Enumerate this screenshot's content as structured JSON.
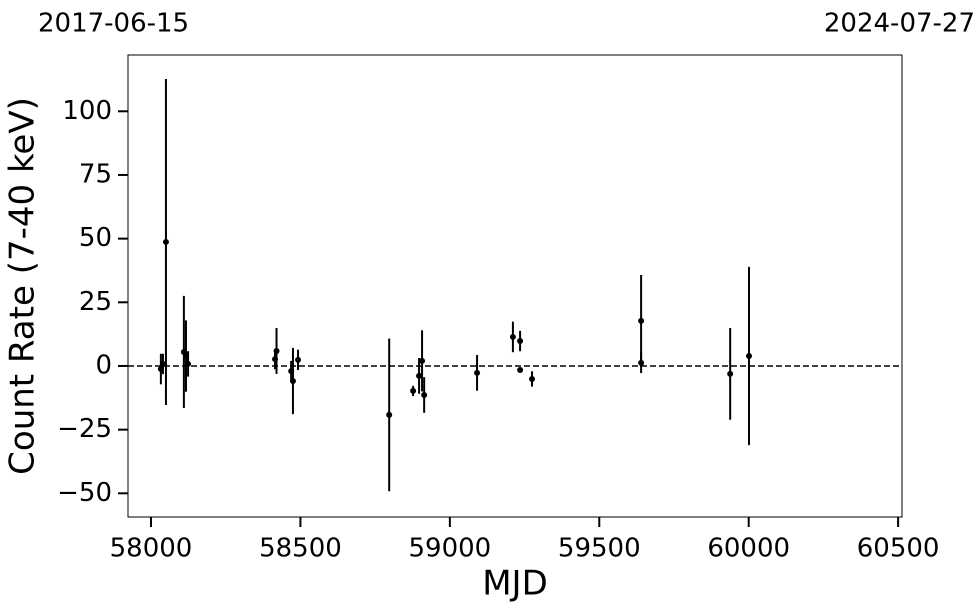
{
  "chart_data": {
    "type": "scatter",
    "annotations": [
      "2017-06-15",
      "2024-07-27"
    ],
    "xlabel": "MJD",
    "ylabel": "Count Rate (7-40 keV)",
    "x": [
      58033,
      58040,
      58050,
      58110,
      58117,
      58124,
      58415,
      58420,
      58469,
      58475,
      58492,
      58797,
      58877,
      58897,
      58907,
      58914,
      59091,
      59211,
      59235,
      59235,
      59275,
      59640,
      59640,
      59938,
      60001
    ],
    "values": [
      -1.2,
      0.8,
      48.7,
      5.5,
      3.9,
      0.8,
      2.7,
      5.9,
      -2,
      -5.9,
      2.4,
      -19.2,
      -9.8,
      -3.9,
      2,
      -11.4,
      -2.7,
      11.4,
      9.8,
      -1.6,
      -5.1,
      17.7,
      1.2,
      -3.1,
      3.9
    ],
    "errors": [
      6,
      4,
      64,
      22,
      14,
      5,
      4,
      9,
      4,
      13,
      4,
      30,
      2,
      7,
      12,
      7,
      7,
      6,
      4,
      1,
      3,
      18,
      4,
      18,
      35
    ],
    "color": "#000000",
    "xlim": [
      57923,
      60513
    ],
    "ylim": [
      -59.3,
      122.1
    ],
    "xticks": [
      58000,
      58500,
      59000,
      59500,
      60000,
      60500
    ],
    "yticks": [
      {
        "value": -50,
        "label": "−50"
      },
      {
        "value": -25,
        "label": "−25"
      },
      0,
      25,
      50,
      75,
      100
    ],
    "hline": 0
  }
}
